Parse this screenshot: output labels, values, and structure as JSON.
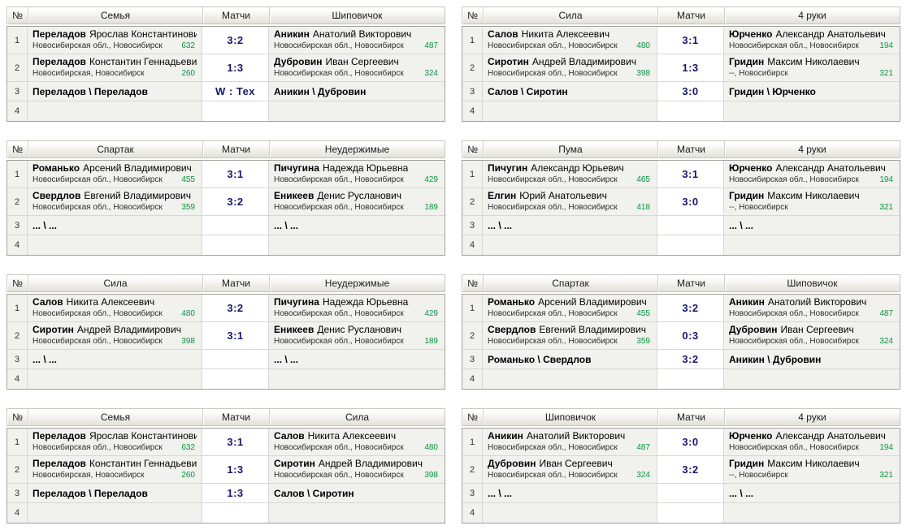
{
  "colors": {
    "score_navy": "#17176e",
    "rating_green": "#0a9440",
    "row_bg": "#f1f1ee",
    "score_bg": "#ffffff",
    "header_gradient_bottom": "#e3e1d9"
  },
  "tables": [
    {
      "no_label": "№",
      "team1": "Семья",
      "matches_label": "Матчи",
      "team2": "Шиповичок",
      "rows": [
        {
          "no": "1",
          "p1_surname": "Переладов",
          "p1_given": "Ярослав Константинович",
          "p1_region": "Новосибирская обл., Новосибирск",
          "p1_rating": "632",
          "score": "3:2",
          "p2_surname": "Аникин",
          "p2_given": "Анатолий Викторович",
          "p2_region": "Новосибирская обл., Новосибирск",
          "p2_rating": "487"
        },
        {
          "no": "2",
          "p1_surname": "Переладов",
          "p1_given": "Константин Геннадьевич",
          "p1_region": "Новосибирская, Новосибирск",
          "p1_rating": "260",
          "score": "1:3",
          "p2_surname": "Дубровин",
          "p2_given": "Иван Сергеевич",
          "p2_region": "Новосибирская обл., Новосибирск",
          "p2_rating": "324"
        },
        {
          "no": "3",
          "p1_surname": "Переладов \\ Переладов",
          "score": "W : Тех",
          "p2_surname": "Аникин \\ Дубровин"
        },
        {
          "no": "4"
        }
      ]
    },
    {
      "no_label": "№",
      "team1": "Сила",
      "matches_label": "Матчи",
      "team2": "4 руки",
      "rows": [
        {
          "no": "1",
          "p1_surname": "Салов",
          "p1_given": "Никита Алексеевич",
          "p1_region": "Новосибирская обл., Новосибирск",
          "p1_rating": "480",
          "score": "3:1",
          "p2_surname": "Юрченко",
          "p2_given": "Александр Анатольевич",
          "p2_region": "Новосибирская обл., Новосибирск",
          "p2_rating": "194"
        },
        {
          "no": "2",
          "p1_surname": "Сиротин",
          "p1_given": "Андрей Владимирович",
          "p1_region": "Новосибирская обл., Новосибирск",
          "p1_rating": "398",
          "score": "1:3",
          "p2_surname": "Гридин",
          "p2_given": "Максим Николаевич",
          "p2_region": "--, Новосибирск",
          "p2_rating": "321"
        },
        {
          "no": "3",
          "p1_surname": "Салов \\ Сиротин",
          "score": "3:0",
          "p2_surname": "Гридин \\ Юрченко"
        },
        {
          "no": "4"
        }
      ]
    },
    {
      "no_label": "№",
      "team1": "Спартак",
      "matches_label": "Матчи",
      "team2": "Неудержимые",
      "rows": [
        {
          "no": "1",
          "p1_surname": "Романько",
          "p1_given": "Арсений Владимирович",
          "p1_region": "Новосибирская обл., Новосибирск",
          "p1_rating": "455",
          "score": "3:1",
          "p2_surname": "Пичугина",
          "p2_given": "Надежда Юрьевна",
          "p2_region": "Новосибирская обл., Новосибирск",
          "p2_rating": "429"
        },
        {
          "no": "2",
          "p1_surname": "Свердлов",
          "p1_given": "Евгений Владимирович",
          "p1_region": "Новосибирская обл., Новосибирск",
          "p1_rating": "359",
          "score": "3:2",
          "p2_surname": "Еникеев",
          "p2_given": "Денис Русланович",
          "p2_region": "Новосибирская обл., Новосибирск",
          "p2_rating": "189"
        },
        {
          "no": "3",
          "p1_surname": "... \\ ...",
          "score": "",
          "p2_surname": "... \\ ..."
        },
        {
          "no": "4"
        }
      ]
    },
    {
      "no_label": "№",
      "team1": "Пума",
      "matches_label": "Матчи",
      "team2": "4 руки",
      "rows": [
        {
          "no": "1",
          "p1_surname": "Пичугин",
          "p1_given": "Александр Юрьевич",
          "p1_region": "Новосибирская обл., Новосибирск",
          "p1_rating": "465",
          "score": "3:1",
          "p2_surname": "Юрченко",
          "p2_given": "Александр Анатольевич",
          "p2_region": "Новосибирская обл., Новосибирск",
          "p2_rating": "194"
        },
        {
          "no": "2",
          "p1_surname": "Елгин",
          "p1_given": "Юрий Анатольевич",
          "p1_region": "Новосибирская обл., Новосибирск",
          "p1_rating": "418",
          "score": "3:0",
          "p2_surname": "Гридин",
          "p2_given": "Максим Николаевич",
          "p2_region": "--, Новосибирск",
          "p2_rating": "321"
        },
        {
          "no": "3",
          "p1_surname": "... \\ ...",
          "score": "",
          "p2_surname": "... \\ ..."
        },
        {
          "no": "4"
        }
      ]
    },
    {
      "no_label": "№",
      "team1": "Сила",
      "matches_label": "Матчи",
      "team2": "Неудержимые",
      "rows": [
        {
          "no": "1",
          "p1_surname": "Салов",
          "p1_given": "Никита Алексеевич",
          "p1_region": "Новосибирская обл., Новосибирск",
          "p1_rating": "480",
          "score": "3:2",
          "p2_surname": "Пичугина",
          "p2_given": "Надежда Юрьевна",
          "p2_region": "Новосибирская обл., Новосибирск",
          "p2_rating": "429"
        },
        {
          "no": "2",
          "p1_surname": "Сиротин",
          "p1_given": "Андрей Владимирович",
          "p1_region": "Новосибирская обл., Новосибирск",
          "p1_rating": "398",
          "score": "3:1",
          "p2_surname": "Еникеев",
          "p2_given": "Денис Русланович",
          "p2_region": "Новосибирская обл., Новосибирск",
          "p2_rating": "189"
        },
        {
          "no": "3",
          "p1_surname": "... \\ ...",
          "score": "",
          "p2_surname": "... \\ ..."
        },
        {
          "no": "4"
        }
      ]
    },
    {
      "no_label": "№",
      "team1": "Спартак",
      "matches_label": "Матчи",
      "team2": "Шиповичок",
      "rows": [
        {
          "no": "1",
          "p1_surname": "Романько",
          "p1_given": "Арсений Владимирович",
          "p1_region": "Новосибирская обл., Новосибирск",
          "p1_rating": "455",
          "score": "3:2",
          "p2_surname": "Аникин",
          "p2_given": "Анатолий Викторович",
          "p2_region": "Новосибирская обл., Новосибирск",
          "p2_rating": "487"
        },
        {
          "no": "2",
          "p1_surname": "Свердлов",
          "p1_given": "Евгений Владимирович",
          "p1_region": "Новосибирская обл., Новосибирск",
          "p1_rating": "359",
          "score": "0:3",
          "p2_surname": "Дубровин",
          "p2_given": "Иван Сергеевич",
          "p2_region": "Новосибирская обл., Новосибирск",
          "p2_rating": "324"
        },
        {
          "no": "3",
          "p1_surname": "Романько \\ Свердлов",
          "score": "3:2",
          "p2_surname": "Аникин \\ Дубровин"
        },
        {
          "no": "4"
        }
      ]
    },
    {
      "no_label": "№",
      "team1": "Семья",
      "matches_label": "Матчи",
      "team2": "Сила",
      "rows": [
        {
          "no": "1",
          "p1_surname": "Переладов",
          "p1_given": "Ярослав Константинович",
          "p1_region": "Новосибирская обл., Новосибирск",
          "p1_rating": "632",
          "score": "3:1",
          "p2_surname": "Салов",
          "p2_given": "Никита Алексеевич",
          "p2_region": "Новосибирская обл., Новосибирск",
          "p2_rating": "480"
        },
        {
          "no": "2",
          "p1_surname": "Переладов",
          "p1_given": "Константин Геннадьевич",
          "p1_region": "Новосибирская, Новосибирск",
          "p1_rating": "260",
          "score": "1:3",
          "p2_surname": "Сиротин",
          "p2_given": "Андрей Владимирович",
          "p2_region": "Новосибирская обл., Новосибирск",
          "p2_rating": "398"
        },
        {
          "no": "3",
          "p1_surname": "Переладов \\ Переладов",
          "score": "1:3",
          "p2_surname": "Салов \\ Сиротин"
        },
        {
          "no": "4"
        }
      ]
    },
    {
      "no_label": "№",
      "team1": "Шиповичок",
      "matches_label": "Матчи",
      "team2": "4 руки",
      "rows": [
        {
          "no": "1",
          "p1_surname": "Аникин",
          "p1_given": "Анатолий Викторович",
          "p1_region": "Новосибирская обл., Новосибирск",
          "p1_rating": "487",
          "score": "3:0",
          "p2_surname": "Юрченко",
          "p2_given": "Александр Анатольевич",
          "p2_region": "Новосибирская обл., Новосибирск",
          "p2_rating": "194"
        },
        {
          "no": "2",
          "p1_surname": "Дубровин",
          "p1_given": "Иван Сергеевич",
          "p1_region": "Новосибирская обл., Новосибирск",
          "p1_rating": "324",
          "score": "3:2",
          "p2_surname": "Гридин",
          "p2_given": "Максим Николаевич",
          "p2_region": "--, Новосибирск",
          "p2_rating": "321"
        },
        {
          "no": "3",
          "p1_surname": "... \\ ...",
          "score": "",
          "p2_surname": "... \\ ..."
        },
        {
          "no": "4"
        }
      ]
    }
  ]
}
